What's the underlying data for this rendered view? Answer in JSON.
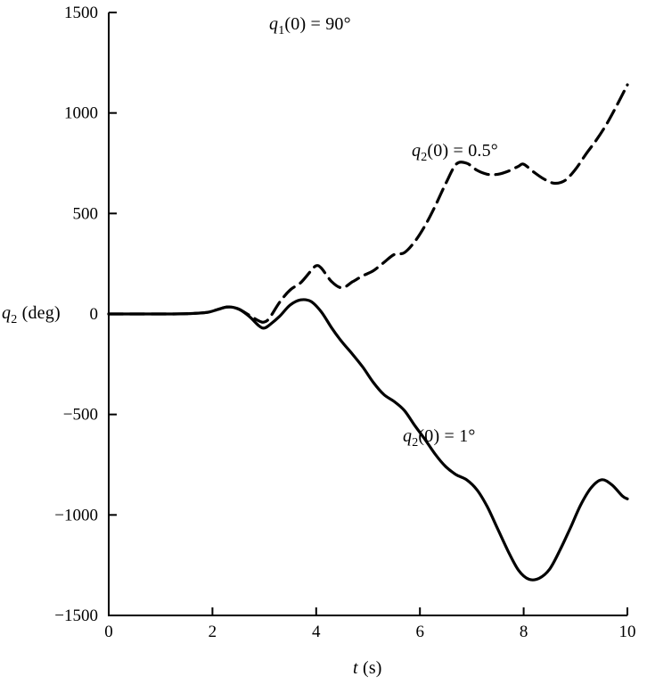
{
  "figure": {
    "background": "#ffffff",
    "ink": "#000000"
  },
  "labels": {
    "annotation_q1": {
      "var": "q",
      "sub": "1",
      "rest": "(0) = 90°"
    },
    "curve_dashed": {
      "var": "q",
      "sub": "2",
      "rest": "(0) = 0.5°"
    },
    "curve_solid": {
      "var": "q",
      "sub": "2",
      "rest": "(0) = 1°"
    },
    "y_axis": {
      "var": "q",
      "sub": "2",
      "rest": " (deg)"
    },
    "x_axis": {
      "var": "t",
      "rest": " (s)"
    }
  },
  "chart_data": {
    "type": "line",
    "title": "q1(0) = 90°",
    "xlabel": "t (s)",
    "ylabel": "q2 (deg)",
    "xlim": [
      0,
      10
    ],
    "ylim": [
      -1500,
      1500
    ],
    "x_ticks": [
      0,
      2,
      4,
      6,
      8,
      10
    ],
    "y_ticks": [
      1500,
      1000,
      500,
      0,
      -500,
      -1000,
      -1500
    ],
    "grid": false,
    "legend_position": "inline-annotations",
    "series": [
      {
        "name": "q2(0) = 0.5°",
        "style": "dashed",
        "points": [
          [
            0,
            0
          ],
          [
            0.6,
            0
          ],
          [
            1.2,
            0
          ],
          [
            1.6,
            2
          ],
          [
            1.9,
            8
          ],
          [
            2.1,
            22
          ],
          [
            2.3,
            35
          ],
          [
            2.5,
            25
          ],
          [
            2.7,
            -5
          ],
          [
            2.9,
            -35
          ],
          [
            3.0,
            -40
          ],
          [
            3.1,
            -20
          ],
          [
            3.3,
            60
          ],
          [
            3.5,
            120
          ],
          [
            3.7,
            155
          ],
          [
            3.9,
            215
          ],
          [
            4.0,
            240
          ],
          [
            4.1,
            228
          ],
          [
            4.3,
            160
          ],
          [
            4.5,
            130
          ],
          [
            4.7,
            160
          ],
          [
            4.9,
            190
          ],
          [
            5.1,
            215
          ],
          [
            5.3,
            255
          ],
          [
            5.5,
            295
          ],
          [
            5.7,
            305
          ],
          [
            5.9,
            360
          ],
          [
            6.1,
            440
          ],
          [
            6.3,
            540
          ],
          [
            6.5,
            650
          ],
          [
            6.7,
            745
          ],
          [
            6.9,
            750
          ],
          [
            7.1,
            715
          ],
          [
            7.3,
            695
          ],
          [
            7.5,
            695
          ],
          [
            7.7,
            710
          ],
          [
            7.9,
            735
          ],
          [
            8.0,
            745
          ],
          [
            8.2,
            705
          ],
          [
            8.4,
            670
          ],
          [
            8.6,
            650
          ],
          [
            8.8,
            665
          ],
          [
            9.0,
            720
          ],
          [
            9.2,
            795
          ],
          [
            9.4,
            865
          ],
          [
            9.6,
            945
          ],
          [
            9.8,
            1040
          ],
          [
            10,
            1140
          ]
        ]
      },
      {
        "name": "q2(0) = 1°",
        "style": "solid",
        "points": [
          [
            0,
            0
          ],
          [
            0.6,
            0
          ],
          [
            1.2,
            0
          ],
          [
            1.6,
            2
          ],
          [
            1.9,
            8
          ],
          [
            2.1,
            22
          ],
          [
            2.3,
            35
          ],
          [
            2.5,
            25
          ],
          [
            2.7,
            -10
          ],
          [
            2.9,
            -60
          ],
          [
            3.0,
            -70
          ],
          [
            3.1,
            -55
          ],
          [
            3.3,
            -10
          ],
          [
            3.5,
            45
          ],
          [
            3.7,
            70
          ],
          [
            3.9,
            62
          ],
          [
            4.1,
            10
          ],
          [
            4.3,
            -70
          ],
          [
            4.5,
            -140
          ],
          [
            4.7,
            -200
          ],
          [
            4.9,
            -265
          ],
          [
            5.1,
            -340
          ],
          [
            5.3,
            -400
          ],
          [
            5.5,
            -435
          ],
          [
            5.7,
            -480
          ],
          [
            5.9,
            -555
          ],
          [
            6.1,
            -625
          ],
          [
            6.3,
            -700
          ],
          [
            6.5,
            -760
          ],
          [
            6.7,
            -800
          ],
          [
            6.9,
            -825
          ],
          [
            7.1,
            -875
          ],
          [
            7.3,
            -960
          ],
          [
            7.5,
            -1070
          ],
          [
            7.7,
            -1180
          ],
          [
            7.9,
            -1275
          ],
          [
            8.1,
            -1320
          ],
          [
            8.3,
            -1315
          ],
          [
            8.5,
            -1270
          ],
          [
            8.7,
            -1175
          ],
          [
            8.9,
            -1065
          ],
          [
            9.1,
            -950
          ],
          [
            9.3,
            -865
          ],
          [
            9.5,
            -825
          ],
          [
            9.7,
            -850
          ],
          [
            9.9,
            -905
          ],
          [
            10,
            -920
          ]
        ]
      }
    ]
  }
}
